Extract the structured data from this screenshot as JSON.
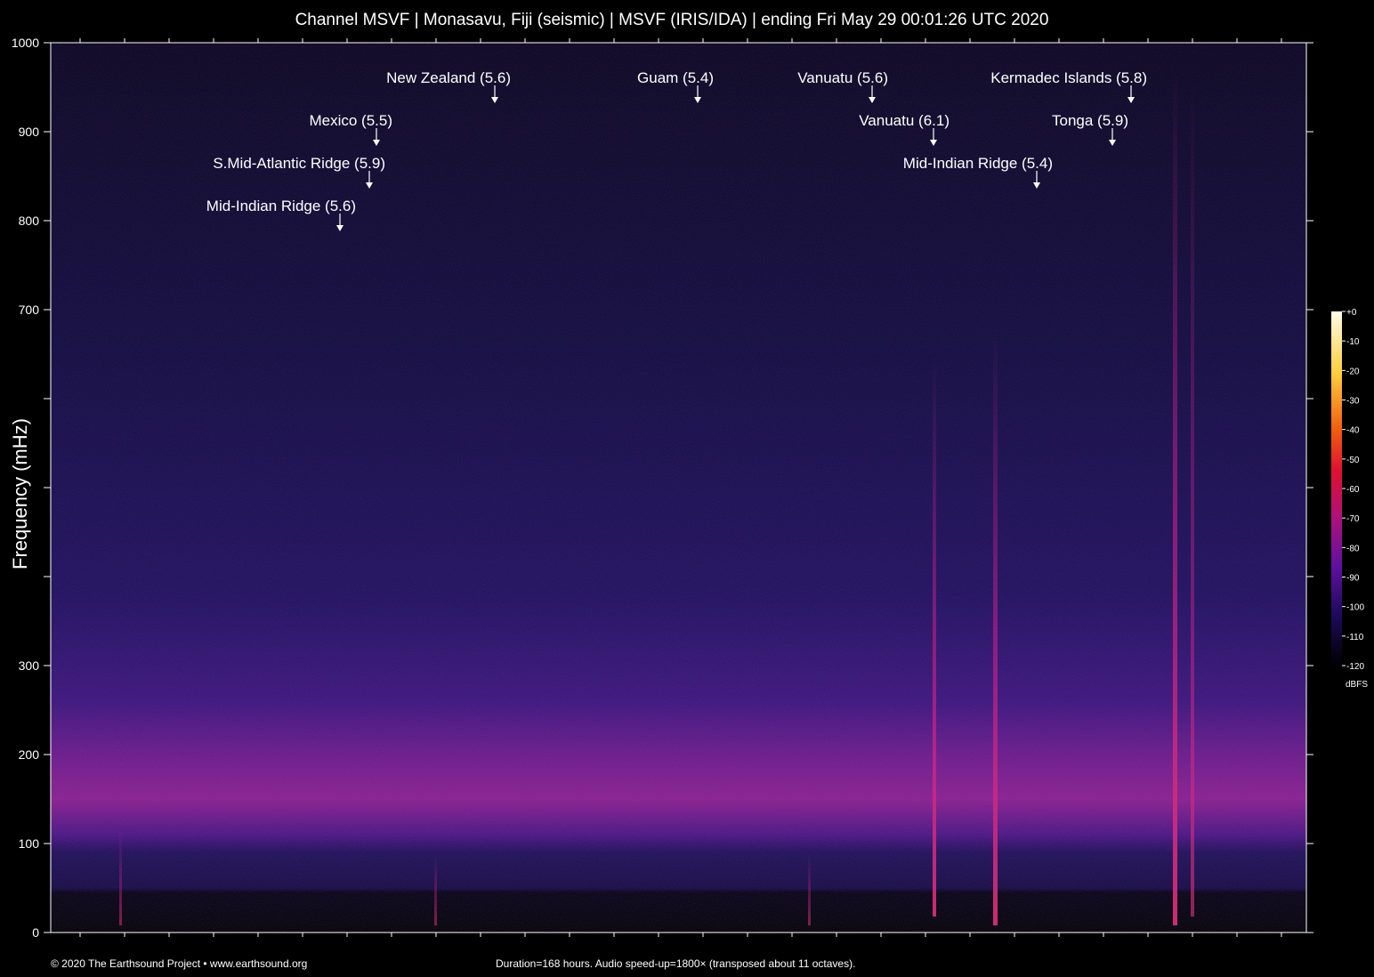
{
  "chart_data": {
    "type": "spectrogram",
    "title": "Channel MSVF | Monasavu, Fiji (seismic) | MSVF (IRIS/IDA) | ending Fri May 29 00:01:26 UTC 2020",
    "ylabel": "Frequency (mHz)",
    "ylim": [
      0,
      1000
    ],
    "yticks": [
      0,
      100,
      200,
      300,
      700,
      800,
      900,
      1000
    ],
    "yminor_ticks": [
      400,
      500,
      600
    ],
    "annotations": [
      "New Zealand (5.6)",
      "Guam (5.4)",
      "Vanuatu (5.6)",
      "Kermadec Islands (5.8)",
      "Mexico (5.5)",
      "Vanuatu (6.1)",
      "Tonga (5.9)",
      "S.Mid-Atlantic Ridge (5.9)",
      "Mid-Indian Ridge (5.4)",
      "Mid-Indian Ridge (5.6)"
    ],
    "colorbar": {
      "label": "dBFS",
      "clim": [
        -120,
        0
      ],
      "ticks": [
        {
          "value": 0,
          "label": "+0"
        },
        -10,
        -20,
        -30,
        -40,
        -50,
        -60,
        -70,
        -80,
        -90,
        -100,
        -110,
        -120
      ]
    },
    "credit": "© 2020 The Earthsound Project • www.earthsound.org",
    "note": "Duration=168 hours. Audio speed-up=1800× (transposed about 11 octaves)."
  }
}
